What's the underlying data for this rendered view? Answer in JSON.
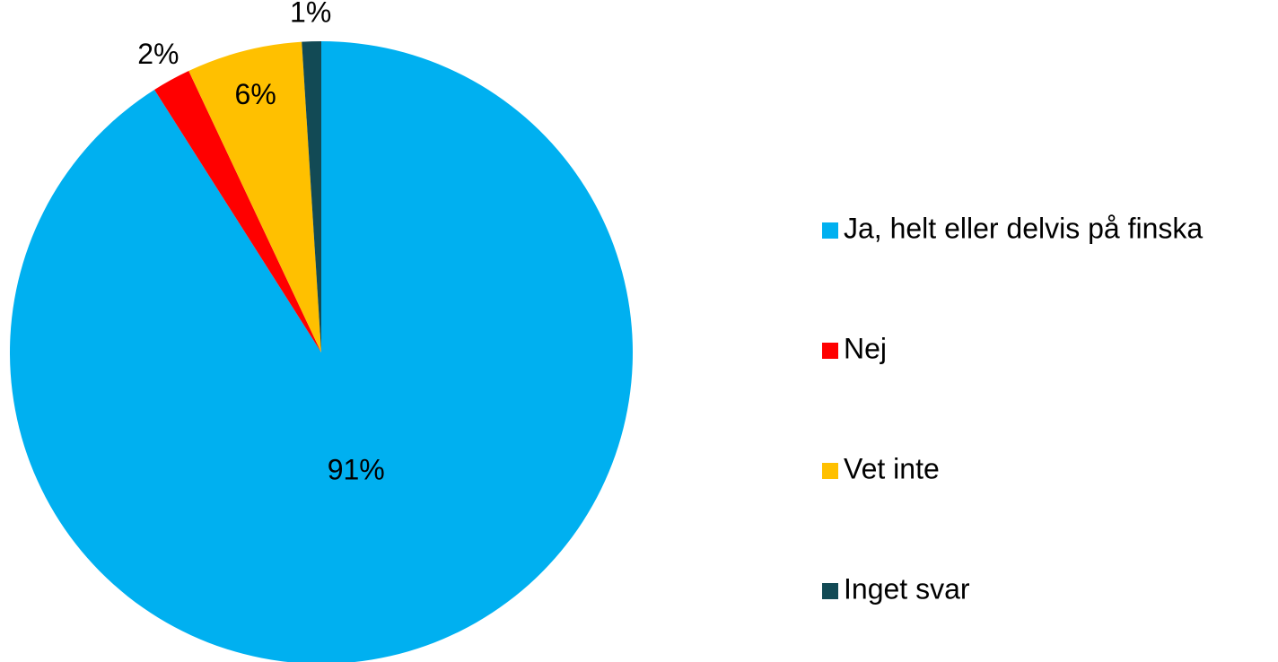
{
  "chart_data": {
    "type": "pie",
    "categories": [
      "Ja, helt eller delvis på finska",
      "Nej",
      "Vet inte",
      "Inget svar"
    ],
    "values": [
      91,
      2,
      6,
      1
    ],
    "value_labels": [
      "91%",
      "2%",
      "6%",
      "1%"
    ],
    "colors": [
      "#00b0f0",
      "#ff0000",
      "#ffc000",
      "#124a55"
    ],
    "legend": "right"
  }
}
